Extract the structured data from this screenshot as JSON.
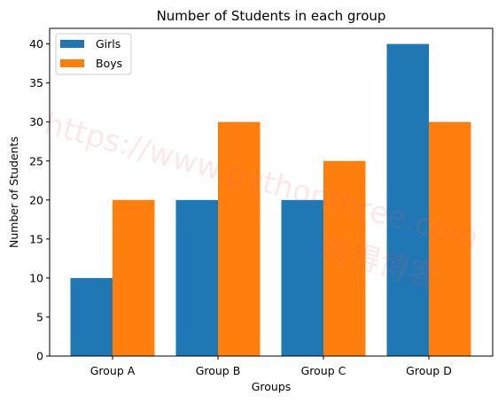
{
  "chart_data": {
    "type": "bar",
    "title": "Number of Students in each group",
    "xlabel": "Groups",
    "ylabel": "Number of Students",
    "categories": [
      "Group A",
      "Group B",
      "Group C",
      "Group D"
    ],
    "series": [
      {
        "name": "Girls",
        "values": [
          10,
          20,
          20,
          40
        ],
        "color": "#1f77b4"
      },
      {
        "name": "Boys",
        "values": [
          20,
          30,
          25,
          30
        ],
        "color": "#ff7f0e"
      }
    ],
    "ylim": [
      0,
      42
    ],
    "yticks": [
      0,
      5,
      10,
      15,
      20,
      25,
      30,
      35,
      40
    ],
    "grid": false,
    "legend_position": "top-left"
  },
  "watermark": {
    "url_text": "https://www.pythonthree.com",
    "brand_text": "晓得博客"
  }
}
